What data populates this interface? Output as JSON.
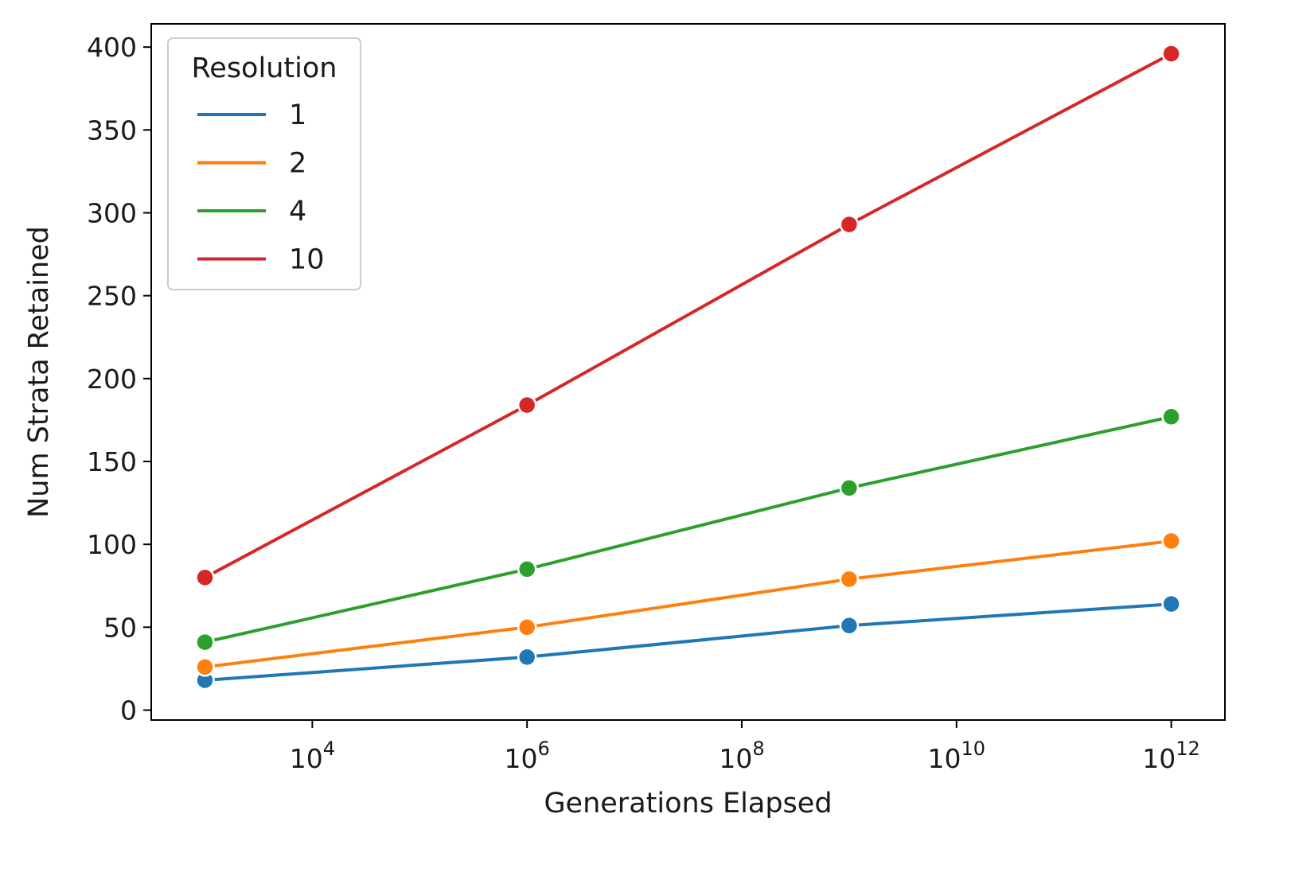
{
  "chart_data": {
    "type": "line",
    "xlabel": "Generations Elapsed",
    "ylabel": "Num Strata Retained",
    "xscale": "log",
    "xlim": [
      316,
      3162277660168
    ],
    "ylim": [
      -6,
      414
    ],
    "xticks": [
      {
        "value": 10000,
        "base": "10",
        "exp": "4"
      },
      {
        "value": 1000000,
        "base": "10",
        "exp": "6"
      },
      {
        "value": 100000000,
        "base": "10",
        "exp": "8"
      },
      {
        "value": 10000000000,
        "base": "10",
        "exp": "10"
      },
      {
        "value": 1000000000000,
        "base": "10",
        "exp": "12"
      }
    ],
    "yticks": [
      0,
      50,
      100,
      150,
      200,
      250,
      300,
      350,
      400
    ],
    "grid": false,
    "legend": {
      "title": "Resolution",
      "placement": "top-left"
    },
    "x": [
      1000,
      1000000,
      1000000000,
      1000000000000
    ],
    "series": [
      {
        "name": "1",
        "color": "#1f77b4",
        "values": [
          18,
          32,
          51,
          64
        ]
      },
      {
        "name": "2",
        "color": "#ff7f0e",
        "values": [
          26,
          50,
          79,
          102
        ]
      },
      {
        "name": "4",
        "color": "#2ca02c",
        "values": [
          41,
          85,
          134,
          177
        ]
      },
      {
        "name": "10",
        "color": "#d62728",
        "values": [
          80,
          184,
          293,
          396
        ]
      }
    ]
  }
}
